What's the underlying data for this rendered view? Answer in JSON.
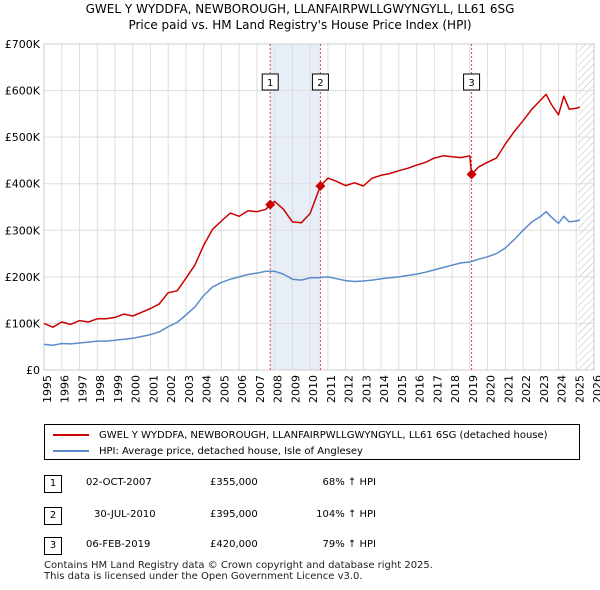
{
  "chart_data": {
    "type": "line",
    "title_line1": "GWEL Y WYDDFA, NEWBOROUGH, LLANFAIRPWLLGWYNGYLL, LL61 6SG",
    "title_line2": "Price paid vs. HM Land Registry's House Price Index (HPI)",
    "xlabel": "",
    "ylabel": "",
    "xlim": [
      1995,
      2026
    ],
    "ylim": [
      0,
      700000
    ],
    "x_ticks": [
      "1995",
      "1996",
      "1997",
      "1998",
      "1999",
      "2000",
      "2001",
      "2002",
      "2003",
      "2004",
      "2005",
      "2006",
      "2007",
      "2008",
      "2009",
      "2010",
      "2011",
      "2012",
      "2013",
      "2014",
      "2015",
      "2016",
      "2017",
      "2018",
      "2019",
      "2020",
      "2021",
      "2022",
      "2023",
      "2024",
      "2025",
      "2026"
    ],
    "y_ticks": [
      {
        "value": 0,
        "label": "£0"
      },
      {
        "value": 100000,
        "label": "£100K"
      },
      {
        "value": 200000,
        "label": "£200K"
      },
      {
        "value": 300000,
        "label": "£300K"
      },
      {
        "value": 400000,
        "label": "£400K"
      },
      {
        "value": 500000,
        "label": "£500K"
      },
      {
        "value": 600000,
        "label": "£600K"
      },
      {
        "value": 700000,
        "label": "£700K"
      }
    ],
    "grid": true,
    "shaded_span": [
      2007.75,
      2010.58
    ],
    "hatched_after": 2025.1,
    "series": [
      {
        "name": "GWEL Y WYDDFA, NEWBOROUGH, LLANFAIRPWLLGWYNGYLL, LL61 6SG (detached house)",
        "color": "#cc0000",
        "x": [
          1995.0,
          1995.5,
          1996.0,
          1996.5,
          1997.0,
          1997.5,
          1998.0,
          1998.5,
          1999.0,
          1999.5,
          2000.0,
          2000.5,
          2001.0,
          2001.5,
          2002.0,
          2002.5,
          2003.0,
          2003.5,
          2004.0,
          2004.5,
          2005.0,
          2005.5,
          2006.0,
          2006.5,
          2007.0,
          2007.5,
          2007.75,
          2008.0,
          2008.5,
          2009.0,
          2009.5,
          2010.0,
          2010.58,
          2011.0,
          2011.5,
          2012.0,
          2012.5,
          2013.0,
          2013.5,
          2014.0,
          2014.5,
          2015.0,
          2015.5,
          2016.0,
          2016.5,
          2017.0,
          2017.5,
          2018.0,
          2018.5,
          2019.0,
          2019.1,
          2019.5,
          2020.0,
          2020.5,
          2021.0,
          2021.5,
          2022.0,
          2022.5,
          2023.0,
          2023.3,
          2023.6,
          2024.0,
          2024.3,
          2024.6,
          2025.0,
          2025.2
        ],
        "y": [
          100000,
          92000,
          103000,
          98000,
          106000,
          103000,
          110000,
          110000,
          113000,
          120000,
          116000,
          124000,
          132000,
          142000,
          166000,
          170000,
          197000,
          225000,
          268000,
          302000,
          320000,
          337000,
          330000,
          342000,
          340000,
          345000,
          355000,
          362000,
          345000,
          318000,
          316000,
          336000,
          395000,
          412000,
          405000,
          396000,
          402000,
          395000,
          412000,
          418000,
          422000,
          428000,
          433000,
          440000,
          446000,
          455000,
          460000,
          458000,
          456000,
          460000,
          420000,
          436000,
          446000,
          455000,
          485000,
          512000,
          535000,
          560000,
          580000,
          592000,
          570000,
          548000,
          588000,
          560000,
          562000,
          565000
        ]
      },
      {
        "name": "HPI: Average price, detached house, Isle of Anglesey",
        "color": "#5b8ccc",
        "x": [
          1995.0,
          1995.5,
          1996.0,
          1996.5,
          1997.0,
          1997.5,
          1998.0,
          1998.5,
          1999.0,
          1999.5,
          2000.0,
          2000.5,
          2001.0,
          2001.5,
          2002.0,
          2002.5,
          2003.0,
          2003.5,
          2004.0,
          2004.5,
          2005.0,
          2005.5,
          2006.0,
          2006.5,
          2007.0,
          2007.5,
          2008.0,
          2008.5,
          2009.0,
          2009.5,
          2010.0,
          2010.5,
          2011.0,
          2011.5,
          2012.0,
          2012.5,
          2013.0,
          2013.5,
          2014.0,
          2014.5,
          2015.0,
          2015.5,
          2016.0,
          2016.5,
          2017.0,
          2017.5,
          2018.0,
          2018.5,
          2019.0,
          2019.5,
          2020.0,
          2020.5,
          2021.0,
          2021.5,
          2022.0,
          2022.5,
          2023.0,
          2023.3,
          2023.6,
          2024.0,
          2024.3,
          2024.6,
          2025.0,
          2025.2
        ],
        "y": [
          55000,
          53000,
          57000,
          56000,
          58000,
          60000,
          62000,
          62000,
          64000,
          66000,
          68000,
          72000,
          76000,
          82000,
          93000,
          102000,
          118000,
          135000,
          160000,
          178000,
          188000,
          195000,
          200000,
          205000,
          208000,
          212000,
          212000,
          206000,
          195000,
          193000,
          198000,
          198000,
          200000,
          196000,
          192000,
          190000,
          191000,
          193000,
          196000,
          198000,
          200000,
          203000,
          206000,
          210000,
          215000,
          220000,
          225000,
          230000,
          232000,
          238000,
          243000,
          250000,
          262000,
          280000,
          300000,
          318000,
          330000,
          340000,
          328000,
          315000,
          330000,
          318000,
          320000,
          322000
        ]
      }
    ],
    "sales": [
      {
        "id": "1",
        "x": 2007.75,
        "y": 355000
      },
      {
        "id": "2",
        "x": 2010.58,
        "y": 395000
      },
      {
        "id": "3",
        "x": 2019.1,
        "y": 420000
      }
    ]
  },
  "legend": {
    "property_label": "GWEL Y WYDDFA, NEWBOROUGH, LLANFAIRPWLLGWYNGYLL, LL61 6SG (detached house)",
    "hpi_label": "HPI: Average price, detached house, Isle of Anglesey"
  },
  "sales_table": [
    {
      "id": "1",
      "date": "02-OCT-2007",
      "price": "£355,000",
      "hpi": "68% ↑ HPI"
    },
    {
      "id": "2",
      "date": "30-JUL-2010",
      "price": "£395,000",
      "hpi": "104% ↑ HPI"
    },
    {
      "id": "3",
      "date": "06-FEB-2019",
      "price": "£420,000",
      "hpi": "79% ↑ HPI"
    }
  ],
  "footer": {
    "line1": "Contains HM Land Registry data © Crown copyright and database right 2025.",
    "line2": "This data is licensed under the Open Government Licence v3.0."
  }
}
